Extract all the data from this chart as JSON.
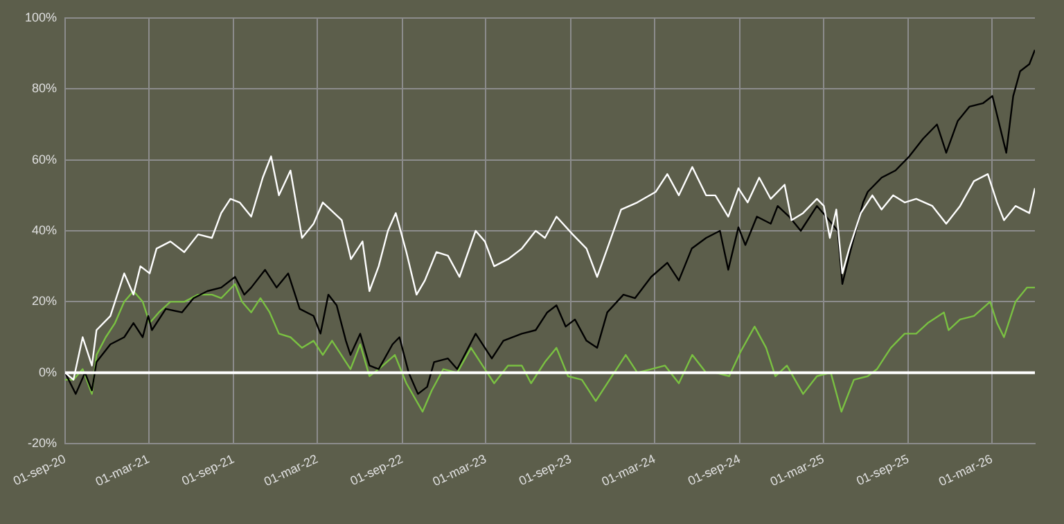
{
  "chart_data": {
    "type": "line",
    "grid": true,
    "legend": false,
    "marker": "none",
    "line_style": "solid",
    "xlim": [
      "2020-09-01",
      "2026-06-02"
    ],
    "xticks": [
      {
        "value": "2020-09-01",
        "label": "01-sep-20"
      },
      {
        "value": "2021-03-01",
        "label": "01-mar-21"
      },
      {
        "value": "2021-09-01",
        "label": "01-sep-21"
      },
      {
        "value": "2022-03-01",
        "label": "01-mar-22"
      },
      {
        "value": "2022-09-01",
        "label": "01-sep-22"
      },
      {
        "value": "2023-03-01",
        "label": "01-mar-23"
      },
      {
        "value": "2023-09-01",
        "label": "01-sep-23"
      },
      {
        "value": "2024-03-01",
        "label": "01-mar-24"
      },
      {
        "value": "2024-09-01",
        "label": "01-sep-24"
      },
      {
        "value": "2025-03-01",
        "label": "01-mar-25"
      },
      {
        "value": "2025-09-01",
        "label": "01-sep-25"
      },
      {
        "value": "2026-03-01",
        "label": "01-mar-26"
      }
    ],
    "ylim": [
      -20,
      100
    ],
    "yticks": [
      {
        "value": -20,
        "label": "-20%"
      },
      {
        "value": 0,
        "label": "0%"
      },
      {
        "value": 20,
        "label": "20%"
      },
      {
        "value": 40,
        "label": "40%"
      },
      {
        "value": 60,
        "label": "60%"
      },
      {
        "value": 80,
        "label": "80%"
      },
      {
        "value": 100,
        "label": "100%"
      }
    ],
    "ref_lines": [
      {
        "axis": "y",
        "value": 0,
        "color": "#ffffff"
      }
    ],
    "series": [
      {
        "color": "#ffffff",
        "x": [
          "2020-09-01",
          "2020-09-19",
          "2020-10-09",
          "2020-10-29",
          "2020-11-08",
          "2020-12-08",
          "2021-01-07",
          "2021-01-27",
          "2021-02-11",
          "2021-03-03",
          "2021-03-18",
          "2021-04-17",
          "2021-05-17",
          "2021-06-16",
          "2021-07-16",
          "2021-08-05",
          "2021-08-25",
          "2021-09-14",
          "2021-10-09",
          "2021-11-03",
          "2021-11-21",
          "2021-12-08",
          "2022-01-02",
          "2022-01-27",
          "2022-02-21",
          "2022-03-13",
          "2022-04-23",
          "2022-05-13",
          "2022-06-07",
          "2022-06-22",
          "2022-07-12",
          "2022-08-01",
          "2022-08-18",
          "2022-09-10",
          "2022-10-02",
          "2022-10-20",
          "2022-11-14",
          "2022-12-09",
          "2023-01-03",
          "2023-02-07",
          "2023-02-27",
          "2023-03-19",
          "2023-04-18",
          "2023-05-18",
          "2023-06-17",
          "2023-07-07",
          "2023-08-01",
          "2023-09-05",
          "2023-10-05",
          "2023-10-28",
          "2023-11-19",
          "2023-12-19",
          "2024-01-23",
          "2024-03-03",
          "2024-03-28",
          "2024-04-22",
          "2024-05-21",
          "2024-06-20",
          "2024-07-10",
          "2024-08-07",
          "2024-08-29",
          "2024-09-18",
          "2024-10-13",
          "2024-11-07",
          "2024-12-07",
          "2024-12-22",
          "2025-01-16",
          "2025-02-15",
          "2025-03-02",
          "2025-03-15",
          "2025-03-29",
          "2025-04-11",
          "2025-04-26",
          "2025-05-21",
          "2025-06-15",
          "2025-07-05",
          "2025-07-30",
          "2025-08-24",
          "2025-09-18",
          "2025-10-23",
          "2025-11-22",
          "2025-12-22",
          "2026-01-21",
          "2026-02-20",
          "2026-03-12",
          "2026-03-27",
          "2026-04-21",
          "2026-05-21",
          "2026-06-02"
        ],
        "values": [
          0,
          -2,
          10,
          2,
          12,
          16,
          28,
          22,
          30,
          28,
          35,
          37,
          34,
          39,
          38,
          45,
          49,
          48,
          44,
          55,
          61,
          50,
          57,
          38,
          42,
          48,
          43,
          32,
          37,
          23,
          30,
          40,
          45,
          34,
          22,
          26,
          34,
          33,
          27,
          40,
          37,
          30,
          32,
          35,
          40,
          38,
          44,
          39,
          35,
          27,
          35,
          46,
          48,
          51,
          56,
          50,
          58,
          50,
          50,
          44,
          52,
          48,
          55,
          49,
          53,
          43,
          45,
          49,
          47,
          38,
          46,
          28,
          35,
          45,
          50,
          46,
          50,
          48,
          49,
          47,
          42,
          47,
          54,
          56,
          48,
          43,
          47,
          45,
          52
        ]
      },
      {
        "color": "#000000",
        "x": [
          "2020-09-01",
          "2020-09-24",
          "2020-10-14",
          "2020-10-29",
          "2020-11-08",
          "2020-12-08",
          "2021-01-07",
          "2021-01-27",
          "2021-02-16",
          "2021-02-28",
          "2021-03-08",
          "2021-04-07",
          "2021-05-12",
          "2021-06-06",
          "2021-07-06",
          "2021-08-05",
          "2021-09-04",
          "2021-09-24",
          "2021-10-09",
          "2021-11-08",
          "2021-12-03",
          "2021-12-28",
          "2022-01-22",
          "2022-02-21",
          "2022-03-08",
          "2022-03-25",
          "2022-04-12",
          "2022-05-02",
          "2022-05-12",
          "2022-06-02",
          "2022-06-22",
          "2022-07-12",
          "2022-08-11",
          "2022-08-26",
          "2022-09-15",
          "2022-10-05",
          "2022-10-25",
          "2022-11-09",
          "2022-12-09",
          "2022-12-29",
          "2023-02-07",
          "2023-03-14",
          "2023-04-08",
          "2023-05-18",
          "2023-06-17",
          "2023-07-12",
          "2023-08-01",
          "2023-08-21",
          "2023-09-10",
          "2023-10-05",
          "2023-10-28",
          "2023-11-19",
          "2023-12-24",
          "2024-01-18",
          "2024-02-22",
          "2024-03-28",
          "2024-04-22",
          "2024-05-20",
          "2024-06-20",
          "2024-07-20",
          "2024-08-07",
          "2024-08-29",
          "2024-09-13",
          "2024-10-08",
          "2024-11-07",
          "2024-11-22",
          "2024-12-17",
          "2025-01-11",
          "2025-02-15",
          "2025-03-07",
          "2025-04-01",
          "2025-04-11",
          "2025-04-26",
          "2025-05-26",
          "2025-06-05",
          "2025-07-05",
          "2025-08-04",
          "2025-09-03",
          "2025-10-03",
          "2025-11-02",
          "2025-11-22",
          "2025-12-17",
          "2026-01-11",
          "2026-02-10",
          "2026-03-02",
          "2026-03-17",
          "2026-04-01",
          "2026-04-16",
          "2026-05-01",
          "2026-05-21",
          "2026-06-02"
        ],
        "values": [
          0,
          -6,
          0,
          -5,
          3,
          8,
          10,
          14,
          10,
          16,
          12,
          18,
          17,
          21,
          23,
          24,
          27,
          22,
          24,
          29,
          24,
          28,
          18,
          16,
          11,
          22,
          19,
          9,
          5,
          11,
          2,
          1,
          8,
          10,
          0,
          -6,
          -4,
          3,
          4,
          1,
          11,
          4,
          9,
          11,
          12,
          17,
          19,
          13,
          15,
          9,
          7,
          17,
          22,
          21,
          27,
          31,
          26,
          35,
          38,
          40,
          29,
          41,
          36,
          44,
          42,
          47,
          44,
          40,
          47,
          44,
          40,
          25,
          33,
          48,
          51,
          55,
          57,
          61,
          66,
          70,
          62,
          71,
          75,
          76,
          78,
          70,
          62,
          78,
          85,
          87,
          91
        ]
      },
      {
        "color": "#7ac142",
        "x": [
          "2020-09-01",
          "2020-09-19",
          "2020-10-09",
          "2020-10-29",
          "2020-11-08",
          "2020-11-28",
          "2020-12-18",
          "2021-01-07",
          "2021-01-27",
          "2021-02-16",
          "2021-03-03",
          "2021-03-23",
          "2021-04-17",
          "2021-05-17",
          "2021-06-16",
          "2021-07-16",
          "2021-08-05",
          "2021-09-04",
          "2021-09-19",
          "2021-10-09",
          "2021-10-29",
          "2021-11-18",
          "2021-12-08",
          "2022-01-02",
          "2022-01-27",
          "2022-02-21",
          "2022-03-13",
          "2022-04-02",
          "2022-05-12",
          "2022-06-02",
          "2022-06-22",
          "2022-07-12",
          "2022-08-16",
          "2022-09-10",
          "2022-10-15",
          "2022-11-04",
          "2022-11-29",
          "2022-12-29",
          "2023-01-28",
          "2023-02-27",
          "2023-03-19",
          "2023-04-18",
          "2023-05-18",
          "2023-06-07",
          "2023-07-07",
          "2023-08-01",
          "2023-08-26",
          "2023-09-25",
          "2023-10-25",
          "2023-11-24",
          "2023-12-29",
          "2024-01-23",
          "2024-02-22",
          "2024-03-23",
          "2024-04-22",
          "2024-05-21",
          "2024-06-20",
          "2024-07-10",
          "2024-08-09",
          "2024-09-03",
          "2024-10-03",
          "2024-10-28",
          "2024-11-17",
          "2024-12-12",
          "2025-01-16",
          "2025-02-15",
          "2025-03-17",
          "2025-04-09",
          "2025-05-06",
          "2025-06-05",
          "2025-06-25",
          "2025-07-25",
          "2025-08-24",
          "2025-09-18",
          "2025-10-13",
          "2025-11-17",
          "2025-11-27",
          "2025-12-22",
          "2026-01-21",
          "2026-02-25",
          "2026-03-12",
          "2026-03-27",
          "2026-04-21",
          "2026-05-16",
          "2026-06-02"
        ],
        "values": [
          -2,
          -2,
          1,
          -6,
          5,
          10,
          14,
          20,
          23,
          20,
          14,
          17,
          20,
          20,
          22,
          22,
          21,
          25,
          20,
          17,
          21,
          17,
          11,
          10,
          7,
          9,
          5,
          9,
          1,
          8,
          -1,
          1,
          5,
          -3,
          -11,
          -5,
          1,
          0,
          7,
          1,
          -3,
          2,
          2,
          -3,
          3,
          7,
          -1,
          -2,
          -8,
          -2,
          5,
          0,
          1,
          2,
          -3,
          5,
          0,
          0,
          -1,
          6,
          13,
          7,
          -1,
          2,
          -6,
          -1,
          0,
          -11,
          -2,
          -1,
          1,
          7,
          11,
          11,
          14,
          17,
          12,
          15,
          16,
          20,
          14,
          10,
          20,
          24,
          24
        ]
      }
    ]
  }
}
